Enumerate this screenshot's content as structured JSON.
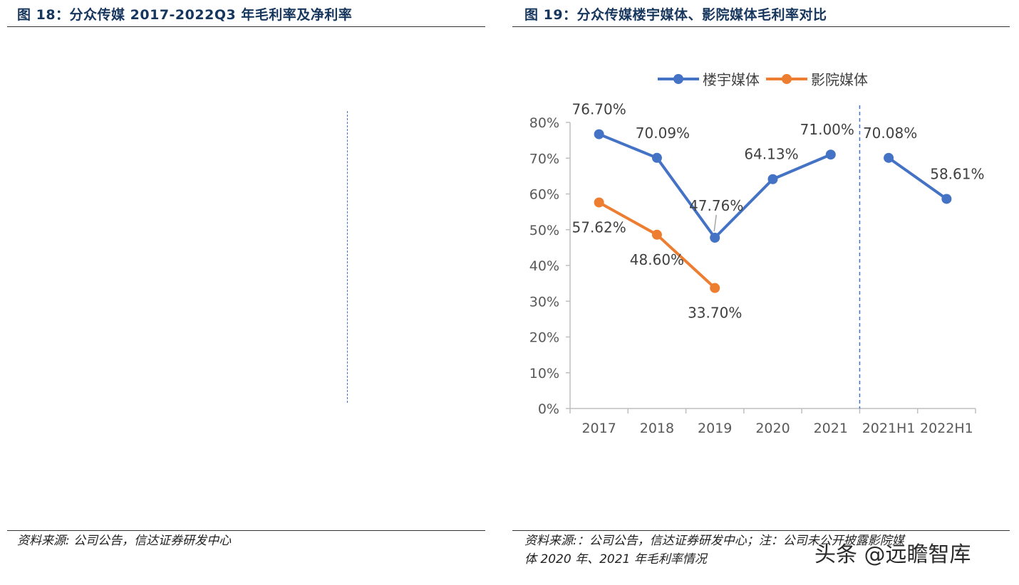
{
  "left_panel": {
    "title": "图 18：分众传媒 2017-2022Q3 年毛利率及净利率",
    "source": "资料来源: 公司公告，信达证券研发中心"
  },
  "right_panel": {
    "title": "图 19：分众传媒楼宇媒体、影院媒体毛利率对比",
    "source_line1": "资料来源:：公司公告，信达证券研发中心；注：公司未公开披露影院媒",
    "source_line2": "体 2020 年、2021 年毛利率情况"
  },
  "watermark": "头条 @远瞻智库",
  "colors": {
    "series1": "#4472c4",
    "series2": "#ed7d31",
    "axis": "#bfbfbf",
    "title": "#17365d"
  },
  "chart_data": {
    "type": "line",
    "title": "",
    "xlabel": "",
    "ylabel": "",
    "categories": [
      "2017",
      "2018",
      "2019",
      "2020",
      "2021",
      "2021H1",
      "2022H1"
    ],
    "ylim": [
      0,
      80
    ],
    "yticks": [
      "0%",
      "10%",
      "20%",
      "30%",
      "40%",
      "50%",
      "60%",
      "70%",
      "80%"
    ],
    "legend_position": "top-right",
    "grid": false,
    "series": [
      {
        "name": "楼宇媒体",
        "color": "#4472c4",
        "values": [
          76.7,
          70.09,
          47.76,
          64.13,
          71.0,
          70.08,
          58.61
        ],
        "labels": [
          "76.70%",
          "70.09%",
          "47.76%",
          "64.13%",
          "71.00%",
          "70.08%",
          "58.61%"
        ]
      },
      {
        "name": "影院媒体",
        "color": "#ed7d31",
        "values": [
          57.62,
          48.6,
          33.7,
          null,
          null,
          null,
          null
        ],
        "labels": [
          "57.62%",
          "48.60%",
          "33.70%",
          "",
          "",
          "",
          ""
        ]
      }
    ]
  }
}
